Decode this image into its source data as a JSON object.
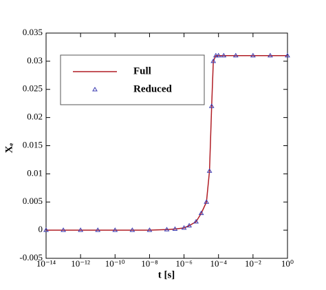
{
  "chart_data": {
    "type": "line",
    "xlabel": "t [s]",
    "ylabel": "Xₑ",
    "xscale": "log",
    "x": [
      1e-14,
      1e-13,
      1e-12,
      1e-11,
      1e-10,
      1e-09,
      1e-08,
      1e-07,
      3e-07,
      1e-06,
      2e-06,
      5e-06,
      1e-05,
      2e-05,
      3e-05,
      4e-05,
      5e-05,
      7e-05,
      0.0001,
      0.0002,
      0.001,
      0.01,
      0.1,
      1
    ],
    "series": [
      {
        "name": "Full",
        "color": "#b01c24",
        "style": "line",
        "values": [
          0,
          0,
          0,
          0,
          0,
          0,
          0,
          0.0001,
          0.0002,
          0.0004,
          0.0008,
          0.0015,
          0.003,
          0.005,
          0.0105,
          0.022,
          0.03,
          0.031,
          0.031,
          0.031,
          0.031,
          0.031,
          0.031,
          0.031
        ]
      },
      {
        "name": "Reduced",
        "color": "#3a3ab0",
        "style": "marker",
        "values": [
          0,
          0,
          0,
          0,
          0,
          0,
          0,
          0.0001,
          0.0002,
          0.0004,
          0.0008,
          0.0015,
          0.003,
          0.005,
          0.0105,
          0.022,
          0.03,
          0.031,
          0.031,
          0.031,
          0.031,
          0.031,
          0.031,
          0.031
        ]
      }
    ],
    "xlim": [
      1e-14,
      1
    ],
    "xticks": [
      {
        "value": 1e-14,
        "label": "10⁻¹⁴"
      },
      {
        "value": 1e-12,
        "label": "10⁻¹²"
      },
      {
        "value": 1e-10,
        "label": "10⁻¹⁰"
      },
      {
        "value": 1e-08,
        "label": "10⁻⁸"
      },
      {
        "value": 1e-06,
        "label": "10⁻⁶"
      },
      {
        "value": 0.0001,
        "label": "10⁻⁴"
      },
      {
        "value": 0.01,
        "label": "10⁻²"
      },
      {
        "value": 1,
        "label": "10⁰"
      }
    ],
    "ylim": [
      -0.005,
      0.035
    ],
    "yticks": [
      -0.005,
      0,
      0.005,
      0.01,
      0.015,
      0.02,
      0.025,
      0.03,
      0.035
    ],
    "legend": "upper left"
  }
}
